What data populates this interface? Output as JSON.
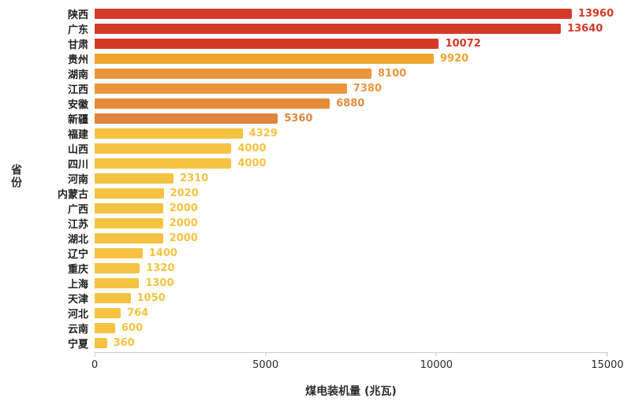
{
  "chart_data": {
    "type": "bar",
    "orientation": "horizontal",
    "title": "",
    "xlabel": "煤电装机量 (兆瓦)",
    "ylabel": "省份",
    "xlim": [
      0,
      15000
    ],
    "xticks": [
      0,
      5000,
      10000,
      15000
    ],
    "grid": false,
    "legend": false,
    "categories": [
      "陕西",
      "广东",
      "甘肃",
      "贵州",
      "湖南",
      "江西",
      "安徽",
      "新疆",
      "福建",
      "山西",
      "四川",
      "河南",
      "内蒙古",
      "广西",
      "江苏",
      "湖北",
      "辽宁",
      "重庆",
      "上海",
      "天津",
      "河北",
      "云南",
      "宁夏"
    ],
    "values": [
      13960,
      13640,
      10072,
      9920,
      8100,
      7380,
      6880,
      5360,
      4329,
      4000,
      4000,
      2310,
      2020,
      2000,
      2000,
      2000,
      1400,
      1320,
      1300,
      1050,
      764,
      600,
      360
    ],
    "bar_colors": [
      "#d43a28",
      "#d43a28",
      "#d43a28",
      "#efa530",
      "#ea953c",
      "#ea953c",
      "#e78b3b",
      "#e1853c",
      "#f5c242",
      "#f5c242",
      "#f5c242",
      "#f5c242",
      "#f5c242",
      "#f5c242",
      "#f5c242",
      "#f5c242",
      "#f5c242",
      "#f5c242",
      "#f5c242",
      "#f5c242",
      "#f5c242",
      "#f5c242",
      "#f5c242"
    ],
    "axis_color": "#cccccc",
    "text_color": "#2b2b2b"
  }
}
